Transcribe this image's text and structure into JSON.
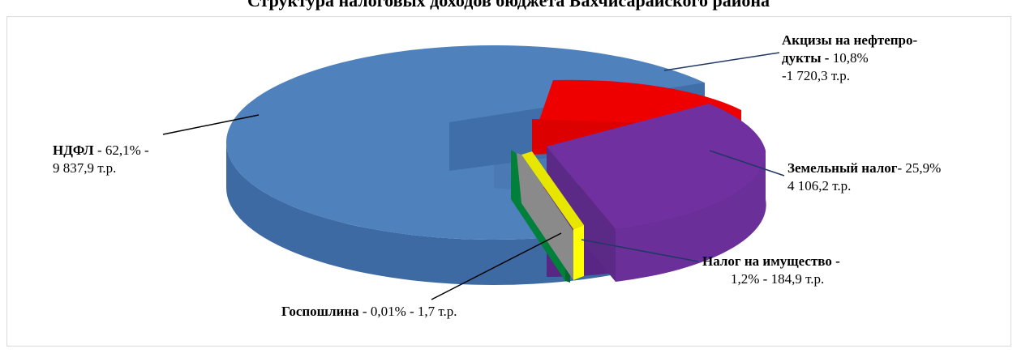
{
  "chart_data": {
    "type": "pie",
    "title": "Структура налоговых доходов бюджета Бахчисарайского района",
    "slices": [
      {
        "name": "НДФЛ",
        "percent": 62.1,
        "amount_text": "9 837,9 т.р.",
        "color": "#4f81bd",
        "side": "#3d6aa3",
        "top": "#5b8bc9"
      },
      {
        "name": "Акцизы на нефтепродукты",
        "percent": 10.8,
        "amount_text": "1 720,3 т.р.",
        "color": "#ee0000",
        "side": "#c00000",
        "top": "#ff1a1a"
      },
      {
        "name": "Земельный налог",
        "percent": 25.9,
        "amount_text": "4 106,2 т.р.",
        "color": "#7030a0",
        "side": "#5a2685",
        "top": "#7a38ae"
      },
      {
        "name": "Налог на имущество",
        "percent": 1.2,
        "amount_text": "184,9 т.р.",
        "color": "#ffff00",
        "side": "#cccc00",
        "top": "#ffff33"
      },
      {
        "name": "Госпошлина",
        "percent": 0.01,
        "amount_text": "1,7 т.р.",
        "color": "#00803a",
        "side": "#006a2e",
        "top": "#00a04a"
      }
    ]
  },
  "labels": {
    "ndfl": {
      "name": "НДФЛ",
      "line1_rest": " - 62,1% -",
      "line2": "9 837,9 т.р."
    },
    "akcizy": {
      "line1": "Акцизы на нефтепро-",
      "line2_bold": "дукты - ",
      "line2_rest": "10,8%",
      "line3": "-1 720,3  т.р."
    },
    "zemelny": {
      "name": "Земельный налог",
      "line1_rest": "- 25,9%",
      "line2": "4 106,2  т.р."
    },
    "imushchestvo": {
      "name": "Налог на имущество -",
      "line2": "1,2% - 184,9 т.р."
    },
    "gosposhlina": {
      "name": "Госпошлина",
      "rest": " - 0,01% -  1,7 т.р."
    }
  }
}
